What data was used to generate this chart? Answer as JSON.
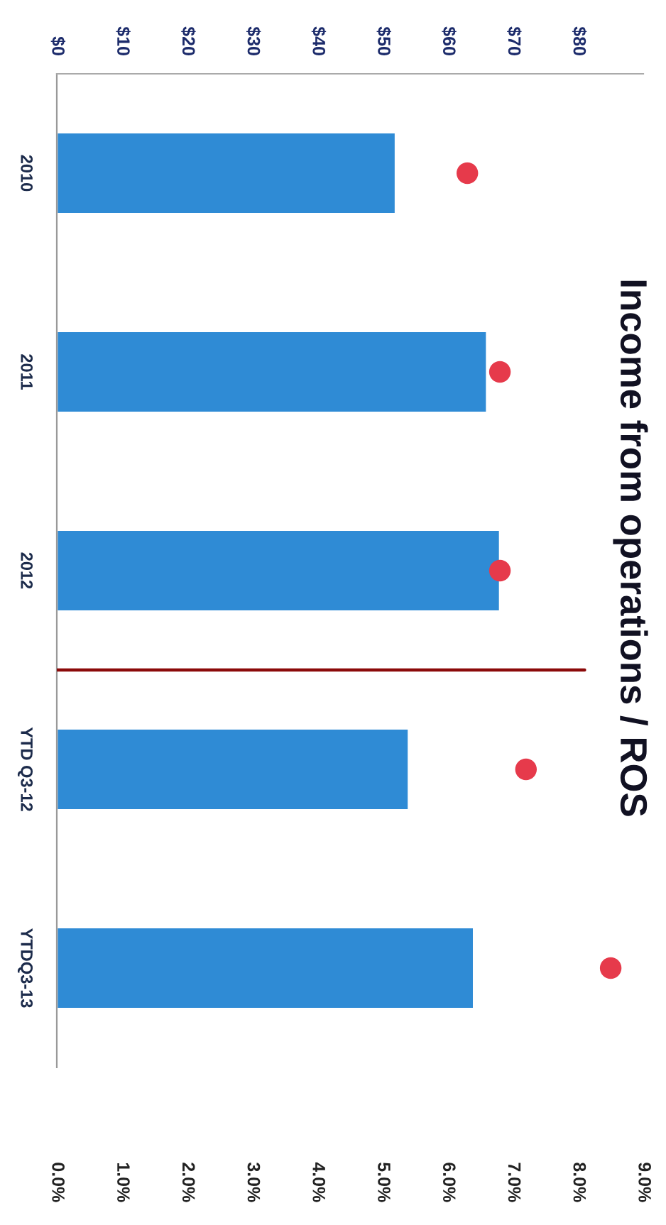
{
  "chart_data": {
    "type": "bar",
    "orientation": "horizontal",
    "title": "Income from operations / ROS",
    "categories": [
      "2010",
      "2011",
      "2012",
      "YTD Q3-12",
      "YTDQ3-13"
    ],
    "series": [
      {
        "axis": "x2",
        "color": "#2f8bd5",
        "values": [
          52,
          66,
          68,
          54,
          64
        ]
      },
      {
        "type": "scatter",
        "color": "#e63a4b",
        "values": [
          6.3,
          6.8,
          6.8,
          7.2,
          8.5
        ]
      }
    ],
    "marker": "circle",
    "x2lim": [
      0,
      90
    ],
    "x2ticks": [
      {
        "value": 0,
        "label": "$0"
      },
      {
        "value": 10,
        "label": "$10"
      },
      {
        "value": 20,
        "label": "$20"
      },
      {
        "value": 30,
        "label": "$30"
      },
      {
        "value": 40,
        "label": "$40"
      },
      {
        "value": 50,
        "label": "$50"
      },
      {
        "value": 60,
        "label": "$60"
      },
      {
        "value": 70,
        "label": "$70"
      },
      {
        "value": 80,
        "label": "$80"
      }
    ],
    "xlim": [
      0,
      9
    ],
    "xticks": [
      {
        "value": 0,
        "label": "0.0%"
      },
      {
        "value": 1,
        "label": "1.0%"
      },
      {
        "value": 2,
        "label": "2.0%"
      },
      {
        "value": 3,
        "label": "3.0%"
      },
      {
        "value": 4,
        "label": "4.0%"
      },
      {
        "value": 5,
        "label": "5.0%"
      },
      {
        "value": 6,
        "label": "6.0%"
      },
      {
        "value": 7,
        "label": "7.0%"
      },
      {
        "value": 8,
        "label": "8.0%"
      },
      {
        "value": 9,
        "label": "9.0%"
      }
    ],
    "ref_lines": [
      {
        "axis": "y",
        "value": "YTD Q3-12",
        "color": "#8b0a0a"
      }
    ]
  }
}
